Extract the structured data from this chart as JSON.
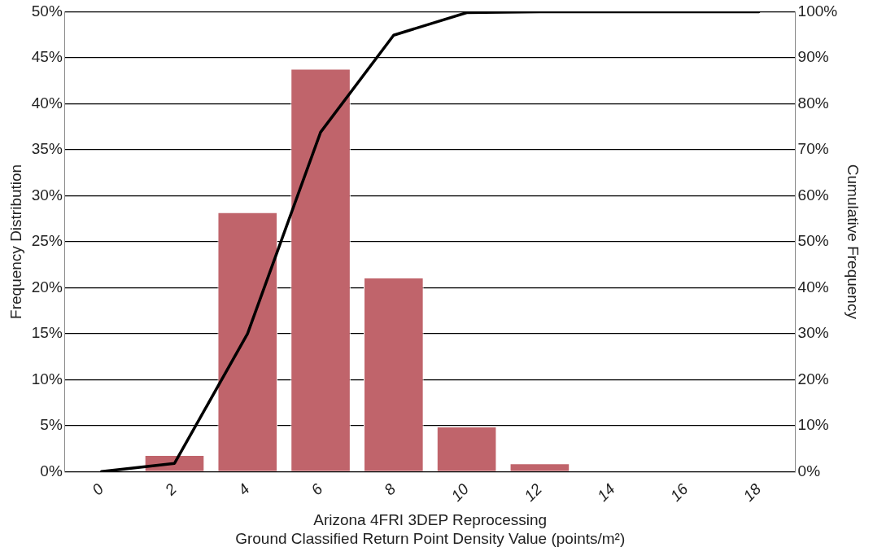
{
  "chart_data": {
    "type": "bar",
    "xlabel": "Arizona 4FRI 3DEP Reprocessing\nGround Classified Return Point Density Value (points/m²)",
    "ylabel": "Frequency Distribution",
    "y2label": "Cumulative Frequency",
    "categories": [
      "0",
      "2",
      "4",
      "6",
      "8",
      "10",
      "12",
      "14",
      "16",
      "18"
    ],
    "series": [
      {
        "color": "#c0646b",
        "values": [
          0,
          1.8,
          28.2,
          43.8,
          21.1,
          4.9,
          0.9,
          0,
          0,
          0
        ]
      },
      {
        "type": "line",
        "axis": "y2",
        "color": "#000000",
        "values": [
          0,
          1.8,
          30,
          73.8,
          94.9,
          99.8,
          100,
          100,
          100,
          100
        ]
      }
    ],
    "ylim": [
      0,
      50
    ],
    "yticks": [
      {
        "value": 0,
        "label": "0%"
      },
      {
        "value": 5,
        "label": "5%"
      },
      {
        "value": 10,
        "label": "10%"
      },
      {
        "value": 15,
        "label": "15%"
      },
      {
        "value": 20,
        "label": "20%"
      },
      {
        "value": 25,
        "label": "25%"
      },
      {
        "value": 30,
        "label": "30%"
      },
      {
        "value": 35,
        "label": "35%"
      },
      {
        "value": 40,
        "label": "40%"
      },
      {
        "value": 45,
        "label": "45%"
      },
      {
        "value": 50,
        "label": "50%"
      }
    ],
    "y2lim": [
      0,
      100
    ],
    "y2ticks": [
      {
        "value": 0,
        "label": "0%"
      },
      {
        "value": 10,
        "label": "10%"
      },
      {
        "value": 20,
        "label": "20%"
      },
      {
        "value": 30,
        "label": "30%"
      },
      {
        "value": 40,
        "label": "40%"
      },
      {
        "value": 50,
        "label": "50%"
      },
      {
        "value": 60,
        "label": "60%"
      },
      {
        "value": 70,
        "label": "70%"
      },
      {
        "value": 80,
        "label": "80%"
      },
      {
        "value": 90,
        "label": "90%"
      },
      {
        "value": 100,
        "label": "100%"
      }
    ],
    "grid": "y",
    "legend": false,
    "marker": "none",
    "line_style": "solid"
  }
}
